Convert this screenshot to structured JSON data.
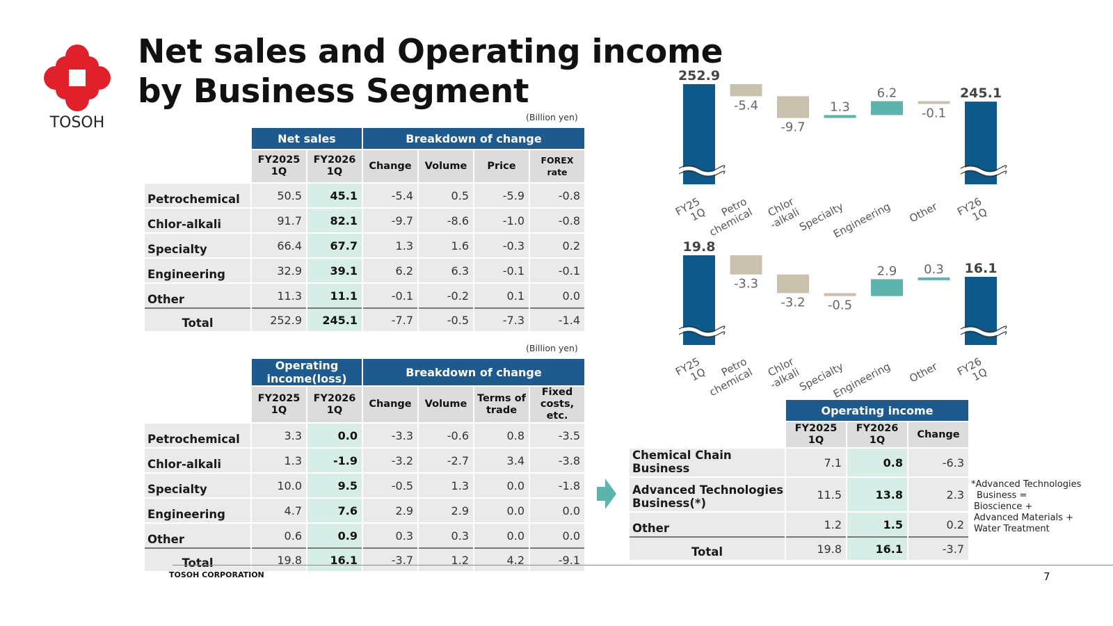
{
  "header": {
    "logo_text": "TOSOH",
    "title_line1": "Net sales and Operating income",
    "title_line2": "by Business Segment"
  },
  "colors": {
    "navy": "#1f5a8e",
    "bar_blue": "#0d5a8a",
    "decrease": "#c9c0ad",
    "increase": "#5db4ac",
    "logo_red": "#e0202a"
  },
  "unit_label": "(Billion yen)",
  "net_sales_table": {
    "group1": "Net sales",
    "group2": "Breakdown of change",
    "columns": [
      "FY2025\n1Q",
      "FY2026\n1Q",
      "Change",
      "Volume",
      "Price",
      "FOREX rate"
    ],
    "col_fy2025": "FY2025",
    "col_fy2026": "FY2026",
    "col_q": "1Q",
    "col_change": "Change",
    "col_volume": "Volume",
    "col_price": "Price",
    "col_forex": "FOREX rate",
    "rows": [
      {
        "label": "Petrochemical",
        "fy2025": "50.5",
        "fy2026": "45.1",
        "change": "-5.4",
        "c1": "0.5",
        "c2": "-5.9",
        "c3": "-0.8"
      },
      {
        "label": "Chlor-alkali",
        "fy2025": "91.7",
        "fy2026": "82.1",
        "change": "-9.7",
        "c1": "-8.6",
        "c2": "-1.0",
        "c3": "-0.8"
      },
      {
        "label": "Specialty",
        "fy2025": "66.4",
        "fy2026": "67.7",
        "change": "1.3",
        "c1": "1.6",
        "c2": "-0.3",
        "c3": "0.2"
      },
      {
        "label": "Engineering",
        "fy2025": "32.9",
        "fy2026": "39.1",
        "change": "6.2",
        "c1": "6.3",
        "c2": "-0.1",
        "c3": "-0.1"
      },
      {
        "label": "Other",
        "fy2025": "11.3",
        "fy2026": "11.1",
        "change": "-0.1",
        "c1": "-0.2",
        "c2": "0.1",
        "c3": "0.0"
      }
    ],
    "total": {
      "label": "Total",
      "fy2025": "252.9",
      "fy2026": "245.1",
      "change": "-7.7",
      "c1": "-0.5",
      "c2": "-7.3",
      "c3": "-1.4"
    }
  },
  "op_income_table": {
    "group1": "Operating income(loss)",
    "group2": "Breakdown of change",
    "col_fy2025": "FY2025",
    "col_fy2026": "FY2026",
    "col_q": "1Q",
    "col_change": "Change",
    "col_volume": "Volume",
    "col_terms1": "Terms of",
    "col_terms2": "trade",
    "col_fixed1": "Fixed",
    "col_fixed2": "costs, etc.",
    "rows": [
      {
        "label": "Petrochemical",
        "fy2025": "3.3",
        "fy2026": "0.0",
        "change": "-3.3",
        "c1": "-0.6",
        "c2": "0.8",
        "c3": "-3.5"
      },
      {
        "label": "Chlor-alkali",
        "fy2025": "1.3",
        "fy2026": "-1.9",
        "change": "-3.2",
        "c1": "-2.7",
        "c2": "3.4",
        "c3": "-3.8"
      },
      {
        "label": "Specialty",
        "fy2025": "10.0",
        "fy2026": "9.5",
        "change": "-0.5",
        "c1": "1.3",
        "c2": "0.0",
        "c3": "-1.8"
      },
      {
        "label": "Engineering",
        "fy2025": "4.7",
        "fy2026": "7.6",
        "change": "2.9",
        "c1": "2.9",
        "c2": "0.0",
        "c3": "0.0"
      },
      {
        "label": "Other",
        "fy2025": "0.6",
        "fy2026": "0.9",
        "change": "0.3",
        "c1": "0.3",
        "c2": "0.0",
        "c3": "0.0"
      }
    ],
    "total": {
      "label": "Total",
      "fy2025": "19.8",
      "fy2026": "16.1",
      "change": "-3.7",
      "c1": "1.2",
      "c2": "4.2",
      "c3": "-9.1"
    }
  },
  "business_table": {
    "group": "Operating income",
    "col_fy2025": "FY2025",
    "col_fy2026": "FY2026",
    "col_q": "1Q",
    "col_change": "Change",
    "rows": [
      {
        "label": "Chemical Chain Business",
        "fy2025": "7.1",
        "fy2026": "0.8",
        "change": "-6.3"
      },
      {
        "label1": "Advanced Technologies",
        "label2": "Business(*)",
        "fy2025": "11.5",
        "fy2026": "13.8",
        "change": "2.3"
      },
      {
        "label": "Other",
        "fy2025": "1.2",
        "fy2026": "1.5",
        "change": "0.2"
      }
    ],
    "total": {
      "label": "Total",
      "fy2025": "19.8",
      "fy2026": "16.1",
      "change": "-3.7"
    }
  },
  "footnote": {
    "line1": "*Advanced Technologies",
    "line2": "Business =",
    "line3": "Bioscience +",
    "line4": "Advanced Materials +",
    "line5": "Water Treatment"
  },
  "footer": {
    "company": "TOSOH CORPORATION",
    "page": "7"
  },
  "chart_data": [
    {
      "type": "bar",
      "subtype": "waterfall",
      "title": "Net sales",
      "categories": [
        "FY25 1Q",
        "Petro chemical",
        "Chlor -alkali",
        "Specialty",
        "Engineering",
        "Other",
        "FY26 1Q"
      ],
      "category_lines": [
        [
          "FY25",
          "1Q"
        ],
        [
          "Petro",
          "chemical"
        ],
        [
          "Chlor",
          "-alkali"
        ],
        [
          "Specialty"
        ],
        [
          "Engineering"
        ],
        [
          "Other"
        ],
        [
          "FY26",
          "1Q"
        ]
      ],
      "values": [
        252.9,
        -5.4,
        -9.7,
        1.3,
        6.2,
        -0.1,
        245.1
      ],
      "labels": [
        "252.9",
        "-5.4",
        "-9.7",
        "1.3",
        "6.2",
        "-0.1",
        "245.1"
      ],
      "axis_break": true
    },
    {
      "type": "bar",
      "subtype": "waterfall",
      "title": "Operating income",
      "categories": [
        "FY25 1Q",
        "Petro chemical",
        "Chlor -alkali",
        "Specialty",
        "Engineering",
        "Other",
        "FY26 1Q"
      ],
      "category_lines": [
        [
          "FY25",
          "1Q"
        ],
        [
          "Petro",
          "chemical"
        ],
        [
          "Chlor",
          "-alkali"
        ],
        [
          "Specialty"
        ],
        [
          "Engineering"
        ],
        [
          "Other"
        ],
        [
          "FY26",
          "1Q"
        ]
      ],
      "values": [
        19.8,
        -3.3,
        -3.2,
        -0.5,
        2.9,
        0.3,
        16.1
      ],
      "labels": [
        "19.8",
        "-3.3",
        "-3.2",
        "-0.5",
        "2.9",
        "0.3",
        "16.1"
      ],
      "axis_break": true
    }
  ]
}
